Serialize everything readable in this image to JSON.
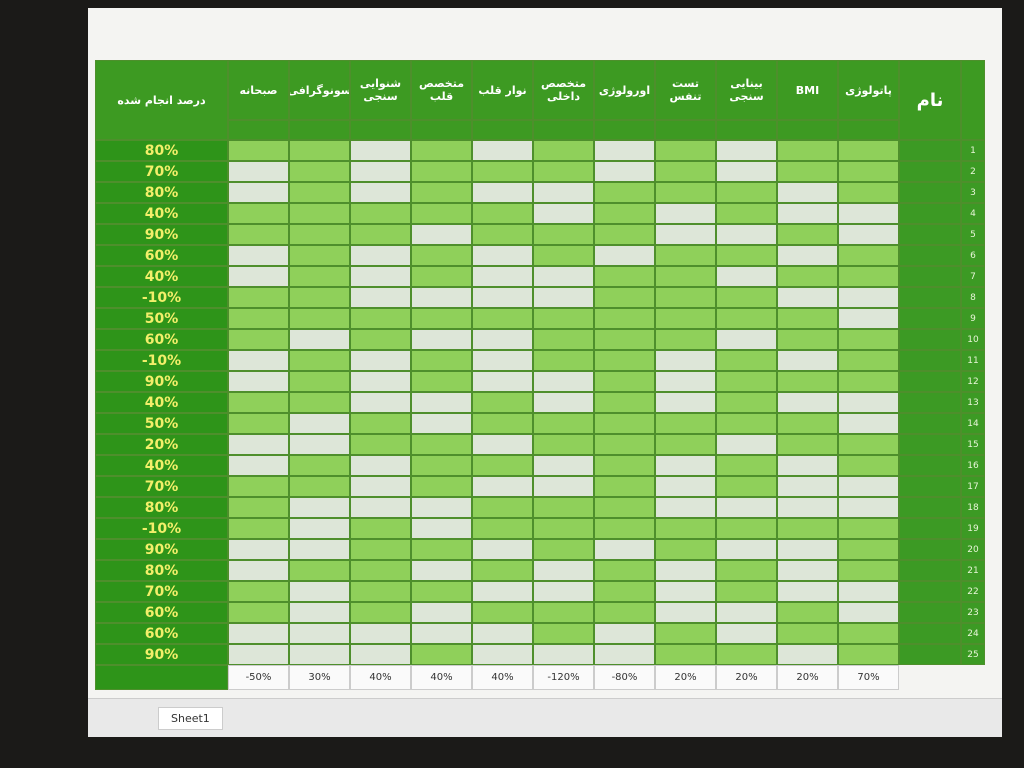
{
  "sheet": {
    "header": {
      "progress_title": "درصد انجام شده",
      "columns": [
        "صبحانه",
        "سونوگرافی",
        "شنوایی سنجی",
        "متخصص قلب",
        "نوار قلب",
        "متخصص داخلی",
        "اورولوژی",
        "تست تنفس",
        "بینایی سنجی",
        "BMI",
        "پاتولوژی"
      ],
      "name_title": "نام"
    },
    "progress": [
      "80%",
      "70%",
      "80%",
      "40%",
      "90%",
      "60%",
      "40%",
      "-10%",
      "50%",
      "60%",
      "-10%",
      "90%",
      "40%",
      "50%",
      "20%",
      "40%",
      "70%",
      "80%",
      "-10%",
      "90%",
      "80%",
      "70%",
      "60%",
      "60%",
      "90%"
    ],
    "row_numbers": [
      1,
      2,
      3,
      4,
      5,
      6,
      7,
      8,
      9,
      10,
      11,
      12,
      13,
      14,
      15,
      16,
      17,
      18,
      19,
      20,
      21,
      22,
      23,
      24,
      25
    ],
    "totals": [
      "-50%",
      "30%",
      "40%",
      "40%",
      "40%",
      "-120%",
      "-80%",
      "20%",
      "20%",
      "20%",
      "70%"
    ],
    "tab": "Sheet1"
  }
}
